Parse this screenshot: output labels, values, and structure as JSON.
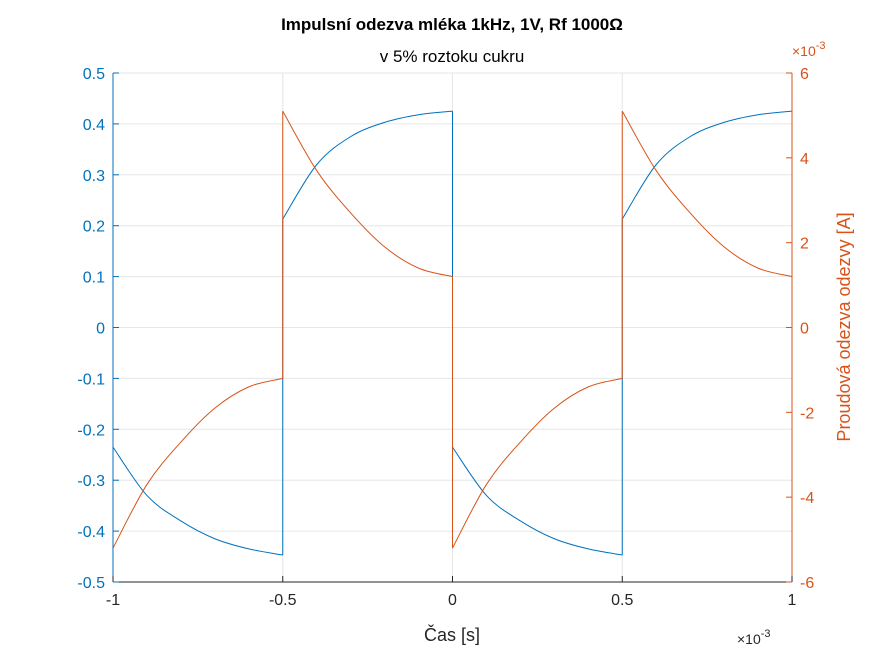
{
  "chart_data": {
    "type": "line",
    "title": "Impulsní odezva mléka 1kHz, 1V, Rf 1000Ω",
    "subtitle": "v 5% roztoku cukru",
    "xlabel": "Čas [s]",
    "ylabel_left": "",
    "ylabel_right": "Proudová odezva odezvy [A]",
    "x_exponent_label": "×10",
    "x_exponent_power": "-3",
    "right_exponent_label": "×10",
    "right_exponent_power": "-3",
    "xlim": [
      -0.001,
      0.001
    ],
    "ylim_left": [
      -0.5,
      0.5
    ],
    "ylim_right": [
      -0.006,
      0.006
    ],
    "x_ticks": [
      -0.001,
      -0.0005,
      0,
      0.0005,
      0.001
    ],
    "x_tick_labels": [
      "-1",
      "-0.5",
      "0",
      "0.5",
      "1"
    ],
    "left_ticks": [
      -0.5,
      -0.4,
      -0.3,
      -0.2,
      -0.1,
      0,
      0.1,
      0.2,
      0.3,
      0.4,
      0.5
    ],
    "left_tick_labels": [
      "-0.5",
      "-0.4",
      "-0.3",
      "-0.2",
      "-0.1",
      "0",
      "0.1",
      "0.2",
      "0.3",
      "0.4",
      "0.5"
    ],
    "right_ticks": [
      -0.006,
      -0.004,
      -0.002,
      0,
      0.002,
      0.004,
      0.006
    ],
    "right_tick_labels": [
      "-6",
      "-4",
      "-2",
      "0",
      "2",
      "4",
      "6"
    ],
    "grid": true,
    "colors": {
      "left_series": "#0072BD",
      "right_series": "#D95319",
      "grid": "#e6e6e6",
      "axes": "#262626"
    },
    "series": [
      {
        "axis": "left",
        "segments": [
          {
            "x": [
              -0.001,
              -0.0009,
              -0.0008,
              -0.0007,
              -0.0006,
              -0.0005
            ],
            "y": [
              -0.235,
              -0.33,
              -0.38,
              -0.415,
              -0.435,
              -0.447
            ]
          },
          {
            "x": [
              -0.0005,
              -0.0005,
              -0.0005
            ],
            "y": [
              -0.447,
              -0.1,
              0.213
            ]
          },
          {
            "x": [
              -0.0005,
              -0.0004,
              -0.0003,
              -0.0002,
              -0.0001,
              0
            ],
            "y": [
              0.213,
              0.32,
              0.375,
              0.403,
              0.418,
              0.425
            ]
          },
          {
            "x": [
              0,
              0,
              0
            ],
            "y": [
              0.425,
              0.1,
              -0.235
            ]
          },
          {
            "x": [
              0,
              0.0001,
              0.0002,
              0.0003,
              0.0004,
              0.0005
            ],
            "y": [
              -0.235,
              -0.33,
              -0.38,
              -0.415,
              -0.435,
              -0.447
            ]
          },
          {
            "x": [
              0.0005,
              0.0005,
              0.0005
            ],
            "y": [
              -0.447,
              -0.1,
              0.213
            ]
          },
          {
            "x": [
              0.0005,
              0.0006,
              0.0007,
              0.0008,
              0.0009,
              0.001
            ],
            "y": [
              0.213,
              0.32,
              0.375,
              0.403,
              0.418,
              0.425
            ]
          }
        ]
      },
      {
        "axis": "right",
        "segments": [
          {
            "x": [
              -0.001,
              -0.0009,
              -0.0008,
              -0.0007,
              -0.0006,
              -0.0005
            ],
            "y": [
              -0.0052,
              -0.0037,
              -0.0027,
              -0.0019,
              -0.0014,
              -0.0012
            ]
          },
          {
            "x": [
              -0.0005,
              -0.0005
            ],
            "y": [
              -0.0012,
              0.0051
            ]
          },
          {
            "x": [
              -0.0005,
              -0.0004,
              -0.0003,
              -0.0002,
              -0.0001,
              0
            ],
            "y": [
              0.0051,
              0.0037,
              0.0027,
              0.0019,
              0.0014,
              0.0012
            ]
          },
          {
            "x": [
              0,
              0
            ],
            "y": [
              0.0012,
              -0.0052
            ]
          },
          {
            "x": [
              0,
              0.0001,
              0.0002,
              0.0003,
              0.0004,
              0.0005
            ],
            "y": [
              -0.0052,
              -0.0037,
              -0.0027,
              -0.0019,
              -0.0014,
              -0.0012
            ]
          },
          {
            "x": [
              0.0005,
              0.0005
            ],
            "y": [
              -0.0012,
              0.0051
            ]
          },
          {
            "x": [
              0.0005,
              0.0006,
              0.0007,
              0.0008,
              0.0009,
              0.001
            ],
            "y": [
              0.0051,
              0.0037,
              0.0027,
              0.0019,
              0.0014,
              0.0012
            ]
          }
        ]
      }
    ]
  }
}
